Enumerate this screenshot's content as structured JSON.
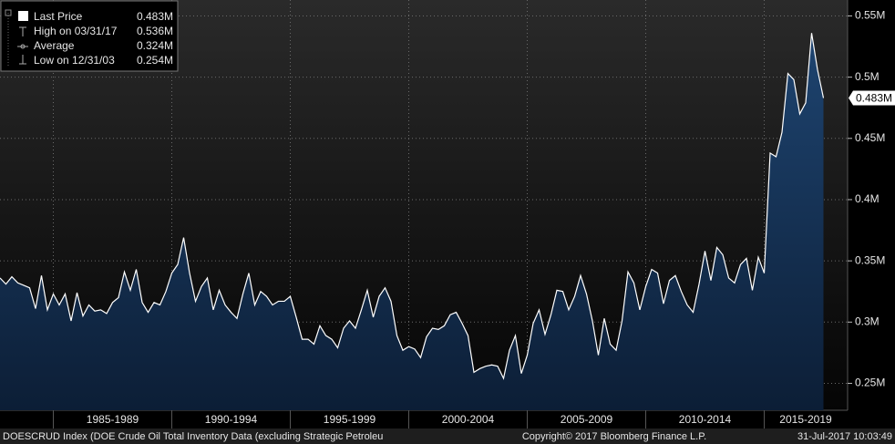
{
  "chart_data": {
    "type": "area",
    "line_color": "#ffffff",
    "fill_color": "#16365a",
    "grid": true,
    "legend": [
      {
        "label": "Last Price",
        "value": "0.483M"
      },
      {
        "label": "High on 03/31/17",
        "value": "0.536M"
      },
      {
        "label": "Average",
        "value": "0.324M"
      },
      {
        "label": "Low on 12/31/03",
        "value": "0.254M"
      }
    ],
    "footer": {
      "ticker": "DOESCRUD Index (DOE Crude Oil Total Inventory Data (excluding Strategic Petroleu",
      "copyright": "Copyright© 2017 Bloomberg Finance L.P.",
      "timestamp": "31-Jul-2017 10:03:49"
    },
    "xlim": [
      1982.75,
      2018.5
    ],
    "xticks": [
      {
        "value": 1985,
        "label": "1985-1989"
      },
      {
        "value": 1990,
        "label": "1990-1994"
      },
      {
        "value": 1995,
        "label": "1995-1999"
      },
      {
        "value": 2000,
        "label": "2000-2004"
      },
      {
        "value": 2005,
        "label": "2005-2009"
      },
      {
        "value": 2010,
        "label": "2010-2014"
      },
      {
        "value": 2015,
        "label": "2015-2019"
      }
    ],
    "ylim": [
      0.228,
      0.563
    ],
    "yticks": [
      {
        "value": 0.25,
        "label": "0.25M"
      },
      {
        "value": 0.3,
        "label": "0.3M"
      },
      {
        "value": 0.35,
        "label": "0.35M"
      },
      {
        "value": 0.4,
        "label": "0.4M"
      },
      {
        "value": 0.45,
        "label": "0.45M"
      },
      {
        "value": 0.5,
        "label": "0.5M"
      },
      {
        "value": 0.55,
        "label": "0.55M"
      }
    ],
    "x": [
      1982.75,
      1983,
      1983.25,
      1983.5,
      1983.75,
      1984,
      1984.25,
      1984.5,
      1984.75,
      1985,
      1985.25,
      1985.5,
      1985.75,
      1986,
      1986.25,
      1986.5,
      1986.75,
      1987,
      1987.25,
      1987.5,
      1987.75,
      1988,
      1988.25,
      1988.5,
      1988.75,
      1989,
      1989.25,
      1989.5,
      1989.75,
      1990,
      1990.25,
      1990.5,
      1990.75,
      1991,
      1991.25,
      1991.5,
      1991.75,
      1992,
      1992.25,
      1992.5,
      1992.75,
      1993,
      1993.25,
      1993.5,
      1993.75,
      1994,
      1994.25,
      1994.5,
      1994.75,
      1995,
      1995.25,
      1995.5,
      1995.75,
      1996,
      1996.25,
      1996.5,
      1996.75,
      1997,
      1997.25,
      1997.5,
      1997.75,
      1998,
      1998.25,
      1998.5,
      1998.75,
      1999,
      1999.25,
      1999.5,
      1999.75,
      2000,
      2000.25,
      2000.5,
      2000.75,
      2001,
      2001.25,
      2001.5,
      2001.75,
      2002,
      2002.25,
      2002.5,
      2002.75,
      2003,
      2003.25,
      2003.5,
      2003.75,
      2004,
      2004.25,
      2004.5,
      2004.75,
      2005,
      2005.25,
      2005.5,
      2005.75,
      2006,
      2006.25,
      2006.5,
      2006.75,
      2007,
      2007.25,
      2007.5,
      2007.75,
      2008,
      2008.25,
      2008.5,
      2008.75,
      2009,
      2009.25,
      2009.5,
      2009.75,
      2010,
      2010.25,
      2010.5,
      2010.75,
      2011,
      2011.25,
      2011.5,
      2011.75,
      2012,
      2012.25,
      2012.5,
      2012.75,
      2013,
      2013.25,
      2013.5,
      2013.75,
      2014,
      2014.25,
      2014.5,
      2014.75,
      2015,
      2015.25,
      2015.5,
      2015.75,
      2016,
      2016.25,
      2016.5,
      2016.75,
      2017,
      2017.25,
      2017.5
    ],
    "values": [
      0.336,
      0.331,
      0.337,
      0.332,
      0.33,
      0.328,
      0.311,
      0.338,
      0.31,
      0.323,
      0.314,
      0.323,
      0.301,
      0.324,
      0.305,
      0.314,
      0.309,
      0.31,
      0.307,
      0.316,
      0.32,
      0.341,
      0.326,
      0.343,
      0.316,
      0.308,
      0.316,
      0.314,
      0.325,
      0.34,
      0.347,
      0.369,
      0.34,
      0.317,
      0.329,
      0.336,
      0.31,
      0.326,
      0.314,
      0.308,
      0.303,
      0.323,
      0.34,
      0.314,
      0.325,
      0.321,
      0.314,
      0.317,
      0.317,
      0.321,
      0.304,
      0.286,
      0.286,
      0.282,
      0.297,
      0.289,
      0.286,
      0.279,
      0.295,
      0.301,
      0.295,
      0.31,
      0.326,
      0.304,
      0.321,
      0.328,
      0.317,
      0.289,
      0.277,
      0.28,
      0.278,
      0.271,
      0.288,
      0.295,
      0.294,
      0.297,
      0.306,
      0.308,
      0.299,
      0.289,
      0.259,
      0.262,
      0.264,
      0.265,
      0.264,
      0.254,
      0.277,
      0.289,
      0.258,
      0.273,
      0.299,
      0.31,
      0.29,
      0.306,
      0.326,
      0.325,
      0.31,
      0.321,
      0.338,
      0.323,
      0.301,
      0.273,
      0.303,
      0.282,
      0.277,
      0.301,
      0.341,
      0.332,
      0.31,
      0.329,
      0.343,
      0.34,
      0.315,
      0.334,
      0.338,
      0.325,
      0.314,
      0.308,
      0.331,
      0.358,
      0.334,
      0.361,
      0.355,
      0.336,
      0.332,
      0.347,
      0.352,
      0.326,
      0.353,
      0.34,
      0.438,
      0.435,
      0.455,
      0.503,
      0.498,
      0.47,
      0.479,
      0.536,
      0.506,
      0.483
    ]
  }
}
